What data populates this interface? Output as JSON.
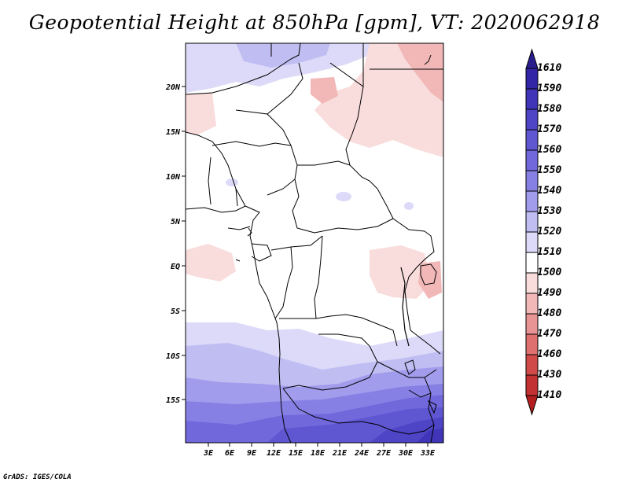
{
  "title": "Geopotential Height at 850hPa [gpm], VT: 2020062918",
  "credit": "GrADS: IGES/COLA",
  "map": {
    "lat_ticks": [
      "20N",
      "15N",
      "10N",
      "5N",
      "EQ",
      "5S",
      "10S",
      "15S"
    ],
    "lon_ticks": [
      "3E",
      "6E",
      "9E",
      "12E",
      "15E",
      "18E",
      "21E",
      "24E",
      "27E",
      "30E",
      "33E"
    ]
  },
  "colorbar": {
    "labels": [
      "1610",
      "1590",
      "1580",
      "1570",
      "1560",
      "1550",
      "1540",
      "1530",
      "1520",
      "1510",
      "1500",
      "1490",
      "1480",
      "1470",
      "1460",
      "1430",
      "1410"
    ],
    "colors": [
      "#2a1e8e",
      "#3326a6",
      "#4035b8",
      "#4e44c6",
      "#5f56d2",
      "#7168dc",
      "#8780e4",
      "#a19cec",
      "#c0bdf3",
      "#dcdaf8",
      "#ffffff",
      "#f9dcdc",
      "#f2b8b8",
      "#e89494",
      "#de7070",
      "#d04a4a",
      "#c23232",
      "#b41e1e"
    ]
  }
}
